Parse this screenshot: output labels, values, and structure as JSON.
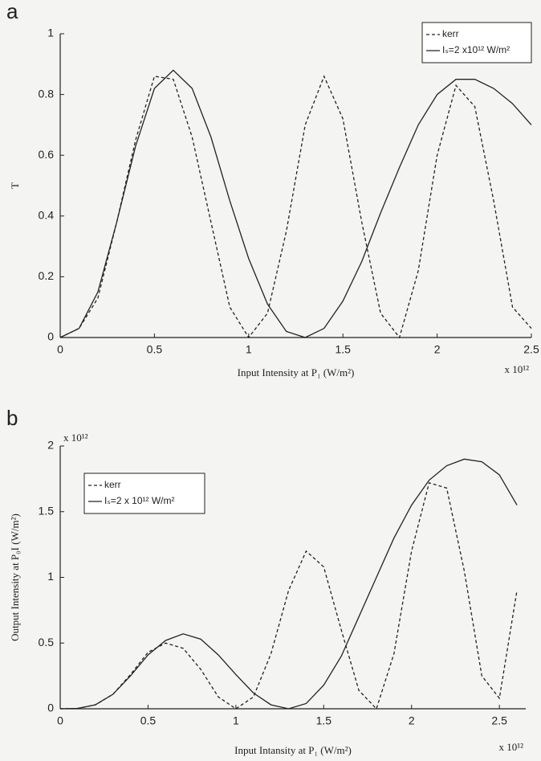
{
  "chart_data": [
    {
      "type": "line",
      "panel_label": "a",
      "y_label": "T",
      "x_label": "Input Intensity at P₁ (W/m²)",
      "x_exponent_label": "x 10¹²",
      "legend_loc": "upper right",
      "x": [
        0,
        0.1,
        0.2,
        0.3,
        0.4,
        0.5,
        0.6,
        0.7,
        0.8,
        0.9,
        1.0,
        1.1,
        1.2,
        1.3,
        1.4,
        1.5,
        1.6,
        1.7,
        1.8,
        1.9,
        2.0,
        2.1,
        2.2,
        2.3,
        2.4,
        2.5
      ],
      "series": [
        {
          "name": "kerr",
          "color": "#222222",
          "line_style": "dashed",
          "values": [
            0,
            0.03,
            0.13,
            0.38,
            0.65,
            0.86,
            0.85,
            0.66,
            0.38,
            0.1,
            0,
            0.08,
            0.35,
            0.7,
            0.86,
            0.72,
            0.38,
            0.08,
            0,
            0.22,
            0.6,
            0.83,
            0.76,
            0.45,
            0.1,
            0.03
          ]
        },
        {
          "name": "Iₛ=2 x10¹² W/m²",
          "color": "#222222",
          "line_style": "solid",
          "values": [
            0,
            0.03,
            0.15,
            0.38,
            0.63,
            0.82,
            0.88,
            0.82,
            0.66,
            0.45,
            0.26,
            0.11,
            0.02,
            0,
            0.03,
            0.12,
            0.25,
            0.41,
            0.56,
            0.7,
            0.8,
            0.85,
            0.85,
            0.82,
            0.77,
            0.7
          ]
        }
      ],
      "xlim": [
        0,
        2.5
      ],
      "xticks": [
        0,
        0.5,
        1,
        1.5,
        2,
        2.5
      ],
      "ylim": [
        0,
        1
      ],
      "yticks": [
        0,
        0.2,
        0.4,
        0.6,
        0.8,
        1
      ]
    },
    {
      "type": "line",
      "panel_label": "b",
      "y_label": "Output Intensity at P₀I (W/m²)",
      "x_label": "Input Intansity at P₁ (W/m²)",
      "x_exponent_label": "x 10¹²",
      "y_exponent_label": "x 10¹²",
      "legend_loc": "upper left",
      "x": [
        0,
        0.1,
        0.2,
        0.3,
        0.4,
        0.5,
        0.6,
        0.7,
        0.8,
        0.9,
        1.0,
        1.1,
        1.2,
        1.3,
        1.4,
        1.5,
        1.6,
        1.7,
        1.8,
        1.9,
        2.0,
        2.1,
        2.2,
        2.3,
        2.4,
        2.5,
        2.6
      ],
      "series": [
        {
          "name": "kerr",
          "color": "#222222",
          "line_style": "dashed",
          "values": [
            0,
            0.003,
            0.03,
            0.11,
            0.26,
            0.43,
            0.5,
            0.46,
            0.3,
            0.09,
            0,
            0.09,
            0.42,
            0.9,
            1.2,
            1.08,
            0.6,
            0.14,
            0,
            0.42,
            1.2,
            1.72,
            1.68,
            1.05,
            0.25,
            0.08,
            0.9
          ]
        },
        {
          "name": "Iₛ=2 x 10¹² W/m²",
          "color": "#222222",
          "line_style": "solid",
          "values": [
            0,
            0.003,
            0.03,
            0.11,
            0.25,
            0.41,
            0.52,
            0.57,
            0.53,
            0.41,
            0.26,
            0.12,
            0.03,
            0,
            0.04,
            0.18,
            0.4,
            0.7,
            1.0,
            1.3,
            1.55,
            1.74,
            1.85,
            1.9,
            1.88,
            1.78,
            1.55
          ]
        }
      ],
      "xlim": [
        0,
        2.65
      ],
      "xticks": [
        0,
        0.5,
        1,
        1.5,
        2,
        2.5
      ],
      "ylim": [
        0,
        2
      ],
      "yticks": [
        0,
        0.5,
        1,
        1.5,
        2
      ]
    }
  ]
}
